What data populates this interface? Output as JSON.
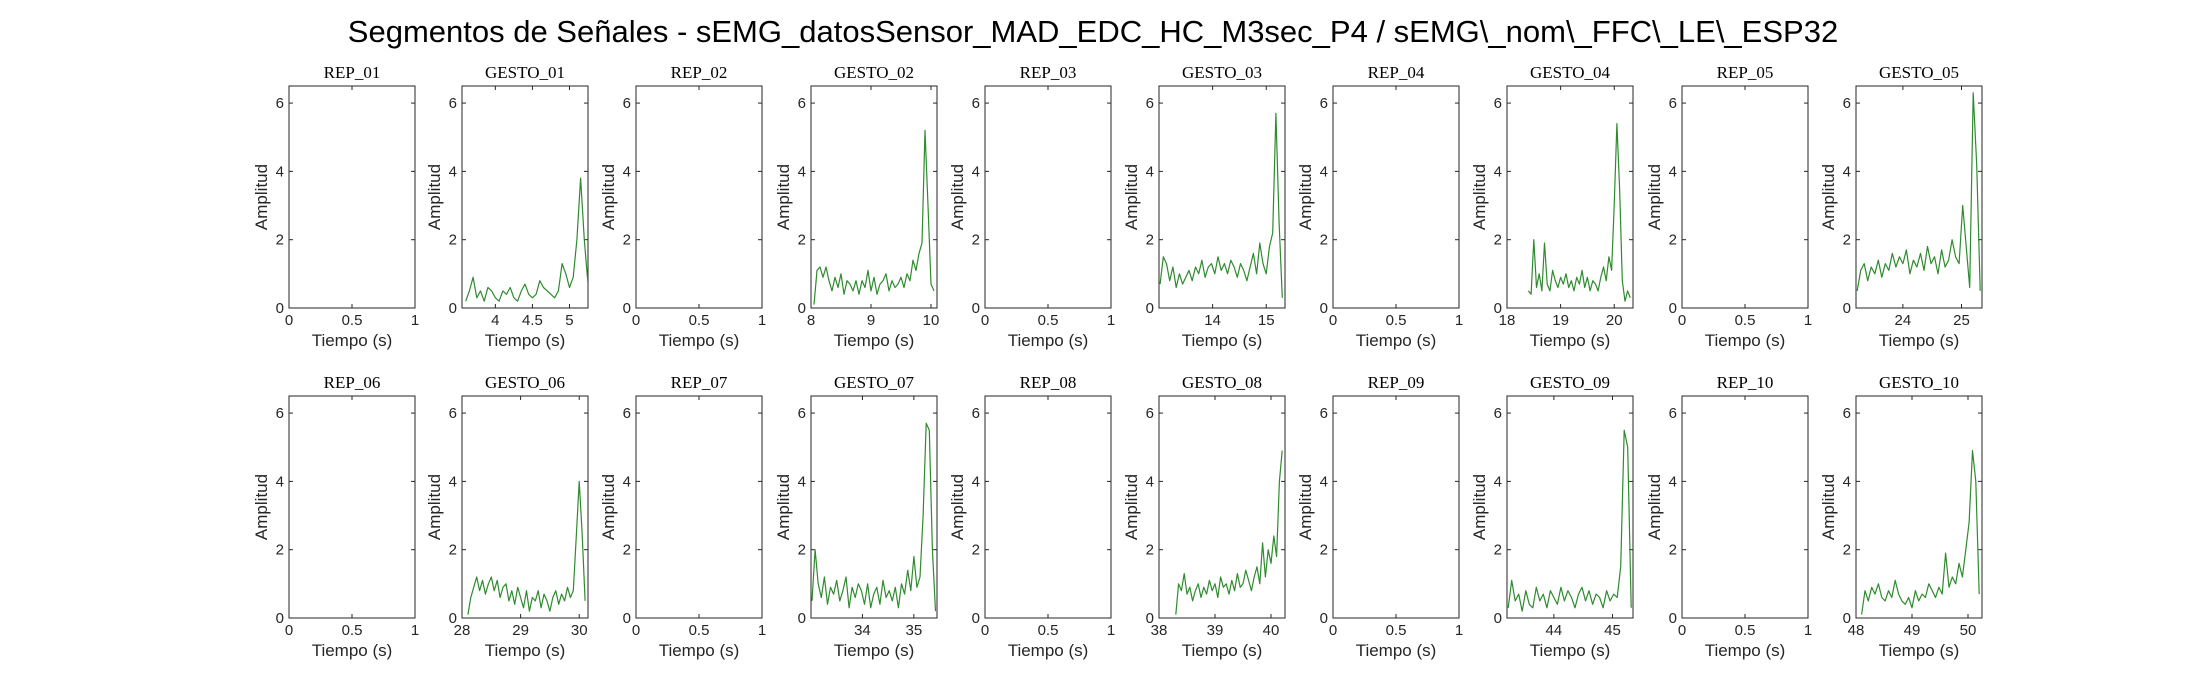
{
  "figure": {
    "title": "Segmentos de Señales - sEMG_datosSensor_MAD_EDC_HC_M3sec_P4 / sEMG\\_nom\\_FFC\\_LE\\_ESP32",
    "line_color": "#2e8b2e"
  },
  "chart_data": [
    {
      "type": "line",
      "title": "REP_01",
      "xlabel": "Tiempo (s)",
      "ylabel": "Amplitud",
      "xlim": [
        0,
        1
      ],
      "ylim": [
        0,
        6.5
      ],
      "xticks": [
        0,
        0.5,
        1
      ],
      "xtick_labels": [
        "0",
        "0.5",
        "1"
      ],
      "yticks": [
        0,
        2,
        4,
        6
      ],
      "x": [],
      "y": []
    },
    {
      "type": "line",
      "title": "GESTO_01",
      "xlabel": "Tiempo (s)",
      "ylabel": "Amplitud",
      "xlim": [
        3.55,
        5.25
      ],
      "ylim": [
        0,
        6.5
      ],
      "xticks": [
        4,
        4.5,
        5
      ],
      "xtick_labels": [
        "4",
        "4.5",
        "5"
      ],
      "yticks": [
        0,
        2,
        4,
        6
      ],
      "x": [
        3.6,
        3.65,
        3.7,
        3.75,
        3.8,
        3.85,
        3.9,
        3.95,
        4.0,
        4.05,
        4.1,
        4.15,
        4.2,
        4.25,
        4.3,
        4.35,
        4.4,
        4.45,
        4.5,
        4.55,
        4.6,
        4.65,
        4.7,
        4.75,
        4.8,
        4.85,
        4.9,
        4.95,
        5.0,
        5.05,
        5.1,
        5.15,
        5.2,
        5.25
      ],
      "y": [
        0.2,
        0.5,
        0.9,
        0.3,
        0.5,
        0.2,
        0.6,
        0.5,
        0.3,
        0.2,
        0.5,
        0.4,
        0.6,
        0.3,
        0.2,
        0.5,
        0.7,
        0.4,
        0.3,
        0.4,
        0.8,
        0.6,
        0.5,
        0.4,
        0.3,
        0.5,
        1.3,
        1.0,
        0.6,
        0.9,
        2.0,
        3.8,
        2.0,
        0.7
      ]
    },
    {
      "type": "line",
      "title": "REP_02",
      "xlabel": "Tiempo (s)",
      "ylabel": "Amplitud",
      "xlim": [
        0,
        1
      ],
      "ylim": [
        0,
        6.5
      ],
      "xticks": [
        0,
        0.5,
        1
      ],
      "xtick_labels": [
        "0",
        "0.5",
        "1"
      ],
      "yticks": [
        0,
        2,
        4,
        6
      ],
      "x": [],
      "y": []
    },
    {
      "type": "line",
      "title": "GESTO_02",
      "xlabel": "Tiempo (s)",
      "ylabel": "Amplitud",
      "xlim": [
        8,
        10.1
      ],
      "ylim": [
        0,
        6.5
      ],
      "xticks": [
        8,
        9,
        10
      ],
      "xtick_labels": [
        "8",
        "9",
        "10"
      ],
      "yticks": [
        0,
        2,
        4,
        6
      ],
      "x": [
        8.05,
        8.1,
        8.15,
        8.2,
        8.25,
        8.3,
        8.35,
        8.4,
        8.45,
        8.5,
        8.55,
        8.6,
        8.65,
        8.7,
        8.75,
        8.8,
        8.85,
        8.9,
        8.95,
        9.0,
        9.05,
        9.1,
        9.15,
        9.2,
        9.25,
        9.3,
        9.35,
        9.4,
        9.45,
        9.5,
        9.55,
        9.6,
        9.65,
        9.7,
        9.75,
        9.8,
        9.85,
        9.9,
        9.95,
        10.0,
        10.05
      ],
      "y": [
        0.1,
        1.1,
        1.2,
        0.9,
        1.2,
        0.8,
        0.5,
        0.9,
        0.6,
        1.0,
        0.4,
        0.8,
        0.7,
        0.5,
        0.8,
        0.4,
        0.8,
        0.6,
        1.1,
        0.5,
        0.9,
        0.4,
        0.7,
        0.8,
        1.0,
        0.5,
        0.8,
        0.6,
        0.7,
        0.9,
        0.6,
        1.0,
        0.8,
        1.4,
        1.1,
        1.6,
        1.9,
        5.2,
        3.0,
        0.7,
        0.5
      ]
    },
    {
      "type": "line",
      "title": "REP_03",
      "xlabel": "Tiempo (s)",
      "ylabel": "Amplitud",
      "xlim": [
        0,
        1
      ],
      "ylim": [
        0,
        6.5
      ],
      "xticks": [
        0,
        0.5,
        1
      ],
      "xtick_labels": [
        "0",
        "0.5",
        "1"
      ],
      "yticks": [
        0,
        2,
        4,
        6
      ],
      "x": [],
      "y": []
    },
    {
      "type": "line",
      "title": "GESTO_03",
      "xlabel": "Tiempo (s)",
      "ylabel": "Amplitud",
      "xlim": [
        13,
        15.35
      ],
      "ylim": [
        0,
        6.5
      ],
      "xticks": [
        14,
        15
      ],
      "xtick_labels": [
        "14",
        "15"
      ],
      "yticks": [
        0,
        2,
        4,
        6
      ],
      "x": [
        13.02,
        13.08,
        13.14,
        13.2,
        13.26,
        13.32,
        13.38,
        13.44,
        13.5,
        13.56,
        13.62,
        13.68,
        13.74,
        13.8,
        13.86,
        13.92,
        13.98,
        14.04,
        14.1,
        14.16,
        14.22,
        14.28,
        14.34,
        14.4,
        14.46,
        14.52,
        14.58,
        14.64,
        14.7,
        14.76,
        14.82,
        14.88,
        14.94,
        15.0,
        15.06,
        15.12,
        15.18,
        15.24,
        15.3
      ],
      "y": [
        0.7,
        1.5,
        1.3,
        0.8,
        1.2,
        0.6,
        1.0,
        0.7,
        0.9,
        1.1,
        0.8,
        1.2,
        1.0,
        1.4,
        0.9,
        1.2,
        1.3,
        1.0,
        1.5,
        1.1,
        1.3,
        1.0,
        1.4,
        1.2,
        0.9,
        1.3,
        1.1,
        0.8,
        1.2,
        1.6,
        1.0,
        1.9,
        1.3,
        1.0,
        1.8,
        2.2,
        5.7,
        2.5,
        0.3
      ]
    },
    {
      "type": "line",
      "title": "REP_04",
      "xlabel": "Tiempo (s)",
      "ylabel": "Amplitud",
      "xlim": [
        0,
        1
      ],
      "ylim": [
        0,
        6.5
      ],
      "xticks": [
        0,
        0.5,
        1
      ],
      "xtick_labels": [
        "0",
        "0.5",
        "1"
      ],
      "yticks": [
        0,
        2,
        4,
        6
      ],
      "x": [],
      "y": []
    },
    {
      "type": "line",
      "title": "GESTO_04",
      "xlabel": "Tiempo (s)",
      "ylabel": "Amplitud",
      "xlim": [
        18,
        20.35
      ],
      "ylim": [
        0,
        6.5
      ],
      "xticks": [
        18,
        19,
        20
      ],
      "xtick_labels": [
        "18",
        "19",
        "20"
      ],
      "yticks": [
        0,
        2,
        4,
        6
      ],
      "x": [
        18.4,
        18.45,
        18.5,
        18.55,
        18.6,
        18.65,
        18.7,
        18.75,
        18.8,
        18.85,
        18.9,
        18.95,
        19.0,
        19.05,
        19.1,
        19.15,
        19.2,
        19.25,
        19.3,
        19.35,
        19.4,
        19.45,
        19.5,
        19.55,
        19.6,
        19.65,
        19.7,
        19.75,
        19.8,
        19.85,
        19.9,
        19.95,
        20.0,
        20.05,
        20.1,
        20.15,
        20.2,
        20.25,
        20.3
      ],
      "y": [
        0.5,
        0.4,
        2.0,
        0.6,
        1.0,
        0.5,
        1.9,
        0.7,
        0.5,
        1.1,
        0.8,
        0.6,
        0.9,
        0.7,
        1.0,
        0.6,
        0.8,
        0.5,
        0.9,
        0.7,
        1.1,
        0.6,
        0.9,
        0.5,
        0.8,
        0.7,
        0.5,
        0.9,
        1.2,
        0.8,
        1.5,
        1.1,
        3.0,
        5.4,
        3.5,
        0.8,
        0.2,
        0.5,
        0.3
      ]
    },
    {
      "type": "line",
      "title": "REP_05",
      "xlabel": "Tiempo (s)",
      "ylabel": "Amplitud",
      "xlim": [
        0,
        1
      ],
      "ylim": [
        0,
        6.5
      ],
      "xticks": [
        0,
        0.5,
        1
      ],
      "xtick_labels": [
        "0",
        "0.5",
        "1"
      ],
      "yticks": [
        0,
        2,
        4,
        6
      ],
      "x": [],
      "y": []
    },
    {
      "type": "line",
      "title": "GESTO_05",
      "xlabel": "Tiempo (s)",
      "ylabel": "Amplitud",
      "xlim": [
        23.2,
        25.35
      ],
      "ylim": [
        0,
        6.5
      ],
      "xticks": [
        24,
        25
      ],
      "xtick_labels": [
        "24",
        "25"
      ],
      "yticks": [
        0,
        2,
        4,
        6
      ],
      "x": [
        23.22,
        23.28,
        23.34,
        23.4,
        23.46,
        23.52,
        23.58,
        23.64,
        23.7,
        23.76,
        23.82,
        23.88,
        23.94,
        24.0,
        24.06,
        24.12,
        24.18,
        24.24,
        24.3,
        24.36,
        24.42,
        24.48,
        24.54,
        24.6,
        24.66,
        24.72,
        24.78,
        24.84,
        24.9,
        24.96,
        25.02,
        25.08,
        25.14,
        25.2,
        25.26,
        25.32
      ],
      "y": [
        0.5,
        1.1,
        1.3,
        0.8,
        1.2,
        1.0,
        1.4,
        0.9,
        1.3,
        1.1,
        1.6,
        1.2,
        1.5,
        1.3,
        1.7,
        1.0,
        1.4,
        1.2,
        1.6,
        1.1,
        1.8,
        1.3,
        1.5,
        1.0,
        1.7,
        1.2,
        1.4,
        2.0,
        1.5,
        1.3,
        3.0,
        1.8,
        0.6,
        6.3,
        4.2,
        0.5
      ]
    },
    {
      "type": "line",
      "title": "REP_06",
      "xlabel": "Tiempo (s)",
      "ylabel": "Amplitud",
      "xlim": [
        0,
        1
      ],
      "ylim": [
        0,
        6.5
      ],
      "xticks": [
        0,
        0.5,
        1
      ],
      "xtick_labels": [
        "0",
        "0.5",
        "1"
      ],
      "yticks": [
        0,
        2,
        4,
        6
      ],
      "x": [],
      "y": []
    },
    {
      "type": "line",
      "title": "GESTO_06",
      "xlabel": "Tiempo (s)",
      "ylabel": "Amplitud",
      "xlim": [
        28,
        30.15
      ],
      "ylim": [
        0,
        6.5
      ],
      "xticks": [
        28,
        29,
        30
      ],
      "xtick_labels": [
        "28",
        "29",
        "30"
      ],
      "yticks": [
        0,
        2,
        4,
        6
      ],
      "x": [
        28.1,
        28.15,
        28.2,
        28.25,
        28.3,
        28.35,
        28.4,
        28.45,
        28.5,
        28.55,
        28.6,
        28.65,
        28.7,
        28.75,
        28.8,
        28.85,
        28.9,
        28.95,
        29.0,
        29.05,
        29.1,
        29.15,
        29.2,
        29.25,
        29.3,
        29.35,
        29.4,
        29.45,
        29.5,
        29.55,
        29.6,
        29.65,
        29.7,
        29.75,
        29.8,
        29.85,
        29.9,
        29.95,
        30.0,
        30.05,
        30.1
      ],
      "y": [
        0.1,
        0.6,
        0.9,
        1.2,
        0.8,
        1.1,
        0.7,
        1.0,
        1.2,
        0.8,
        1.1,
        0.6,
        0.9,
        1.0,
        0.5,
        0.8,
        0.4,
        0.9,
        0.6,
        0.3,
        0.8,
        0.2,
        0.6,
        0.5,
        0.8,
        0.3,
        0.7,
        0.5,
        0.2,
        0.6,
        0.8,
        0.4,
        0.7,
        0.5,
        0.9,
        0.6,
        0.8,
        2.4,
        4.0,
        2.5,
        0.5
      ]
    },
    {
      "type": "line",
      "title": "REP_07",
      "xlabel": "Tiempo (s)",
      "ylabel": "Amplitud",
      "xlim": [
        0,
        1
      ],
      "ylim": [
        0,
        6.5
      ],
      "xticks": [
        0,
        0.5,
        1
      ],
      "xtick_labels": [
        "0",
        "0.5",
        "1"
      ],
      "yticks": [
        0,
        2,
        4,
        6
      ],
      "x": [],
      "y": []
    },
    {
      "type": "line",
      "title": "GESTO_07",
      "xlabel": "Tiempo (s)",
      "ylabel": "Amplitud",
      "xlim": [
        33,
        35.45
      ],
      "ylim": [
        0,
        6.5
      ],
      "xticks": [
        34,
        35
      ],
      "xtick_labels": [
        "34",
        "35"
      ],
      "yticks": [
        0,
        2,
        4,
        6
      ],
      "x": [
        33.02,
        33.08,
        33.14,
        33.2,
        33.26,
        33.32,
        33.38,
        33.44,
        33.5,
        33.56,
        33.62,
        33.68,
        33.74,
        33.8,
        33.86,
        33.92,
        33.98,
        34.04,
        34.1,
        34.16,
        34.22,
        34.28,
        34.34,
        34.4,
        34.46,
        34.52,
        34.58,
        34.64,
        34.7,
        34.76,
        34.82,
        34.88,
        34.94,
        35.0,
        35.06,
        35.12,
        35.18,
        35.24,
        35.3,
        35.36,
        35.42
      ],
      "y": [
        0.5,
        2.0,
        1.0,
        0.6,
        1.2,
        0.4,
        0.9,
        0.7,
        1.1,
        0.5,
        0.8,
        1.2,
        0.3,
        0.9,
        0.6,
        1.0,
        0.8,
        0.4,
        1.0,
        0.3,
        0.7,
        0.9,
        0.4,
        1.1,
        0.6,
        0.8,
        0.5,
        0.9,
        0.3,
        1.0,
        0.7,
        1.4,
        0.8,
        1.8,
        0.9,
        1.2,
        3.0,
        5.7,
        5.5,
        2.0,
        0.2
      ]
    },
    {
      "type": "line",
      "title": "REP_08",
      "xlabel": "Tiempo (s)",
      "ylabel": "Amplitud",
      "xlim": [
        0,
        1
      ],
      "ylim": [
        0,
        6.5
      ],
      "xticks": [
        0,
        0.5,
        1
      ],
      "xtick_labels": [
        "0",
        "0.5",
        "1"
      ],
      "yticks": [
        0,
        2,
        4,
        6
      ],
      "x": [],
      "y": []
    },
    {
      "type": "line",
      "title": "GESTO_08",
      "xlabel": "Tiempo (s)",
      "ylabel": "Amplitud",
      "xlim": [
        38,
        40.25
      ],
      "ylim": [
        0,
        6.5
      ],
      "xticks": [
        38,
        39,
        40
      ],
      "xtick_labels": [
        "38",
        "39",
        "40"
      ],
      "yticks": [
        0,
        2,
        4,
        6
      ],
      "x": [
        38.3,
        38.35,
        38.4,
        38.45,
        38.5,
        38.55,
        38.6,
        38.65,
        38.7,
        38.75,
        38.8,
        38.85,
        38.9,
        38.95,
        39.0,
        39.05,
        39.1,
        39.15,
        39.2,
        39.25,
        39.3,
        39.35,
        39.4,
        39.45,
        39.5,
        39.55,
        39.6,
        39.65,
        39.7,
        39.75,
        39.8,
        39.85,
        39.9,
        39.95,
        40.0,
        40.05,
        40.1,
        40.15,
        40.2
      ],
      "y": [
        0.1,
        1.0,
        0.8,
        1.3,
        0.7,
        0.9,
        0.5,
        0.8,
        1.0,
        0.6,
        0.9,
        0.7,
        1.1,
        0.8,
        1.0,
        0.6,
        1.2,
        0.9,
        1.0,
        0.7,
        1.1,
        0.8,
        1.3,
        0.9,
        1.0,
        1.4,
        1.1,
        0.8,
        1.2,
        1.5,
        1.0,
        2.2,
        1.2,
        2.0,
        1.6,
        2.4,
        1.8,
        4.0,
        4.9
      ]
    },
    {
      "type": "line",
      "title": "REP_09",
      "xlabel": "Tiempo (s)",
      "ylabel": "Amplitud",
      "xlim": [
        0,
        1
      ],
      "ylim": [
        0,
        6.5
      ],
      "xticks": [
        0,
        0.5,
        1
      ],
      "xtick_labels": [
        "0",
        "0.5",
        "1"
      ],
      "yticks": [
        0,
        2,
        4,
        6
      ],
      "x": [],
      "y": []
    },
    {
      "type": "line",
      "title": "GESTO_09",
      "xlabel": "Tiempo (s)",
      "ylabel": "Amplitud",
      "xlim": [
        43.2,
        45.35
      ],
      "ylim": [
        0,
        6.5
      ],
      "xticks": [
        44,
        45
      ],
      "xtick_labels": [
        "44",
        "45"
      ],
      "yticks": [
        0,
        2,
        4,
        6
      ],
      "x": [
        43.22,
        43.28,
        43.34,
        43.4,
        43.46,
        43.52,
        43.58,
        43.64,
        43.7,
        43.76,
        43.82,
        43.88,
        43.94,
        44.0,
        44.06,
        44.12,
        44.18,
        44.24,
        44.3,
        44.36,
        44.42,
        44.48,
        44.54,
        44.6,
        44.66,
        44.72,
        44.78,
        44.84,
        44.9,
        44.96,
        45.02,
        45.08,
        45.14,
        45.2,
        45.26,
        45.32
      ],
      "y": [
        0.3,
        1.1,
        0.5,
        0.7,
        0.2,
        0.8,
        0.4,
        0.3,
        0.9,
        0.5,
        0.7,
        0.3,
        0.8,
        0.6,
        0.4,
        0.9,
        0.5,
        0.8,
        0.6,
        0.3,
        0.7,
        0.9,
        0.5,
        0.8,
        0.4,
        0.7,
        0.6,
        0.3,
        0.8,
        0.5,
        0.7,
        0.6,
        1.5,
        5.5,
        5.0,
        0.3
      ]
    },
    {
      "type": "line",
      "title": "REP_10",
      "xlabel": "Tiempo (s)",
      "ylabel": "Amplitud",
      "xlim": [
        0,
        1
      ],
      "ylim": [
        0,
        6.5
      ],
      "xticks": [
        0,
        0.5,
        1
      ],
      "xtick_labels": [
        "0",
        "0.5",
        "1"
      ],
      "yticks": [
        0,
        2,
        4,
        6
      ],
      "x": [],
      "y": []
    },
    {
      "type": "line",
      "title": "GESTO_10",
      "xlabel": "Tiempo (s)",
      "ylabel": "Amplitud",
      "xlim": [
        48,
        50.25
      ],
      "ylim": [
        0,
        6.5
      ],
      "xticks": [
        48,
        49,
        50
      ],
      "xtick_labels": [
        "48",
        "49",
        "50"
      ],
      "yticks": [
        0,
        2,
        4,
        6
      ],
      "x": [
        48.1,
        48.16,
        48.22,
        48.28,
        48.34,
        48.4,
        48.46,
        48.52,
        48.58,
        48.64,
        48.7,
        48.76,
        48.82,
        48.88,
        48.94,
        49.0,
        49.06,
        49.12,
        49.18,
        49.24,
        49.3,
        49.36,
        49.42,
        49.48,
        49.54,
        49.6,
        49.66,
        49.72,
        49.78,
        49.84,
        49.9,
        49.96,
        50.02,
        50.08,
        50.14,
        50.2
      ],
      "y": [
        0.1,
        0.8,
        0.5,
        0.9,
        0.7,
        1.0,
        0.6,
        0.5,
        0.8,
        0.6,
        1.1,
        0.7,
        0.5,
        0.4,
        0.6,
        0.3,
        0.8,
        0.5,
        0.7,
        0.6,
        1.0,
        0.8,
        0.6,
        0.9,
        0.7,
        1.9,
        0.9,
        1.2,
        1.0,
        1.6,
        1.2,
        2.0,
        2.8,
        4.9,
        4.0,
        0.7
      ]
    }
  ]
}
